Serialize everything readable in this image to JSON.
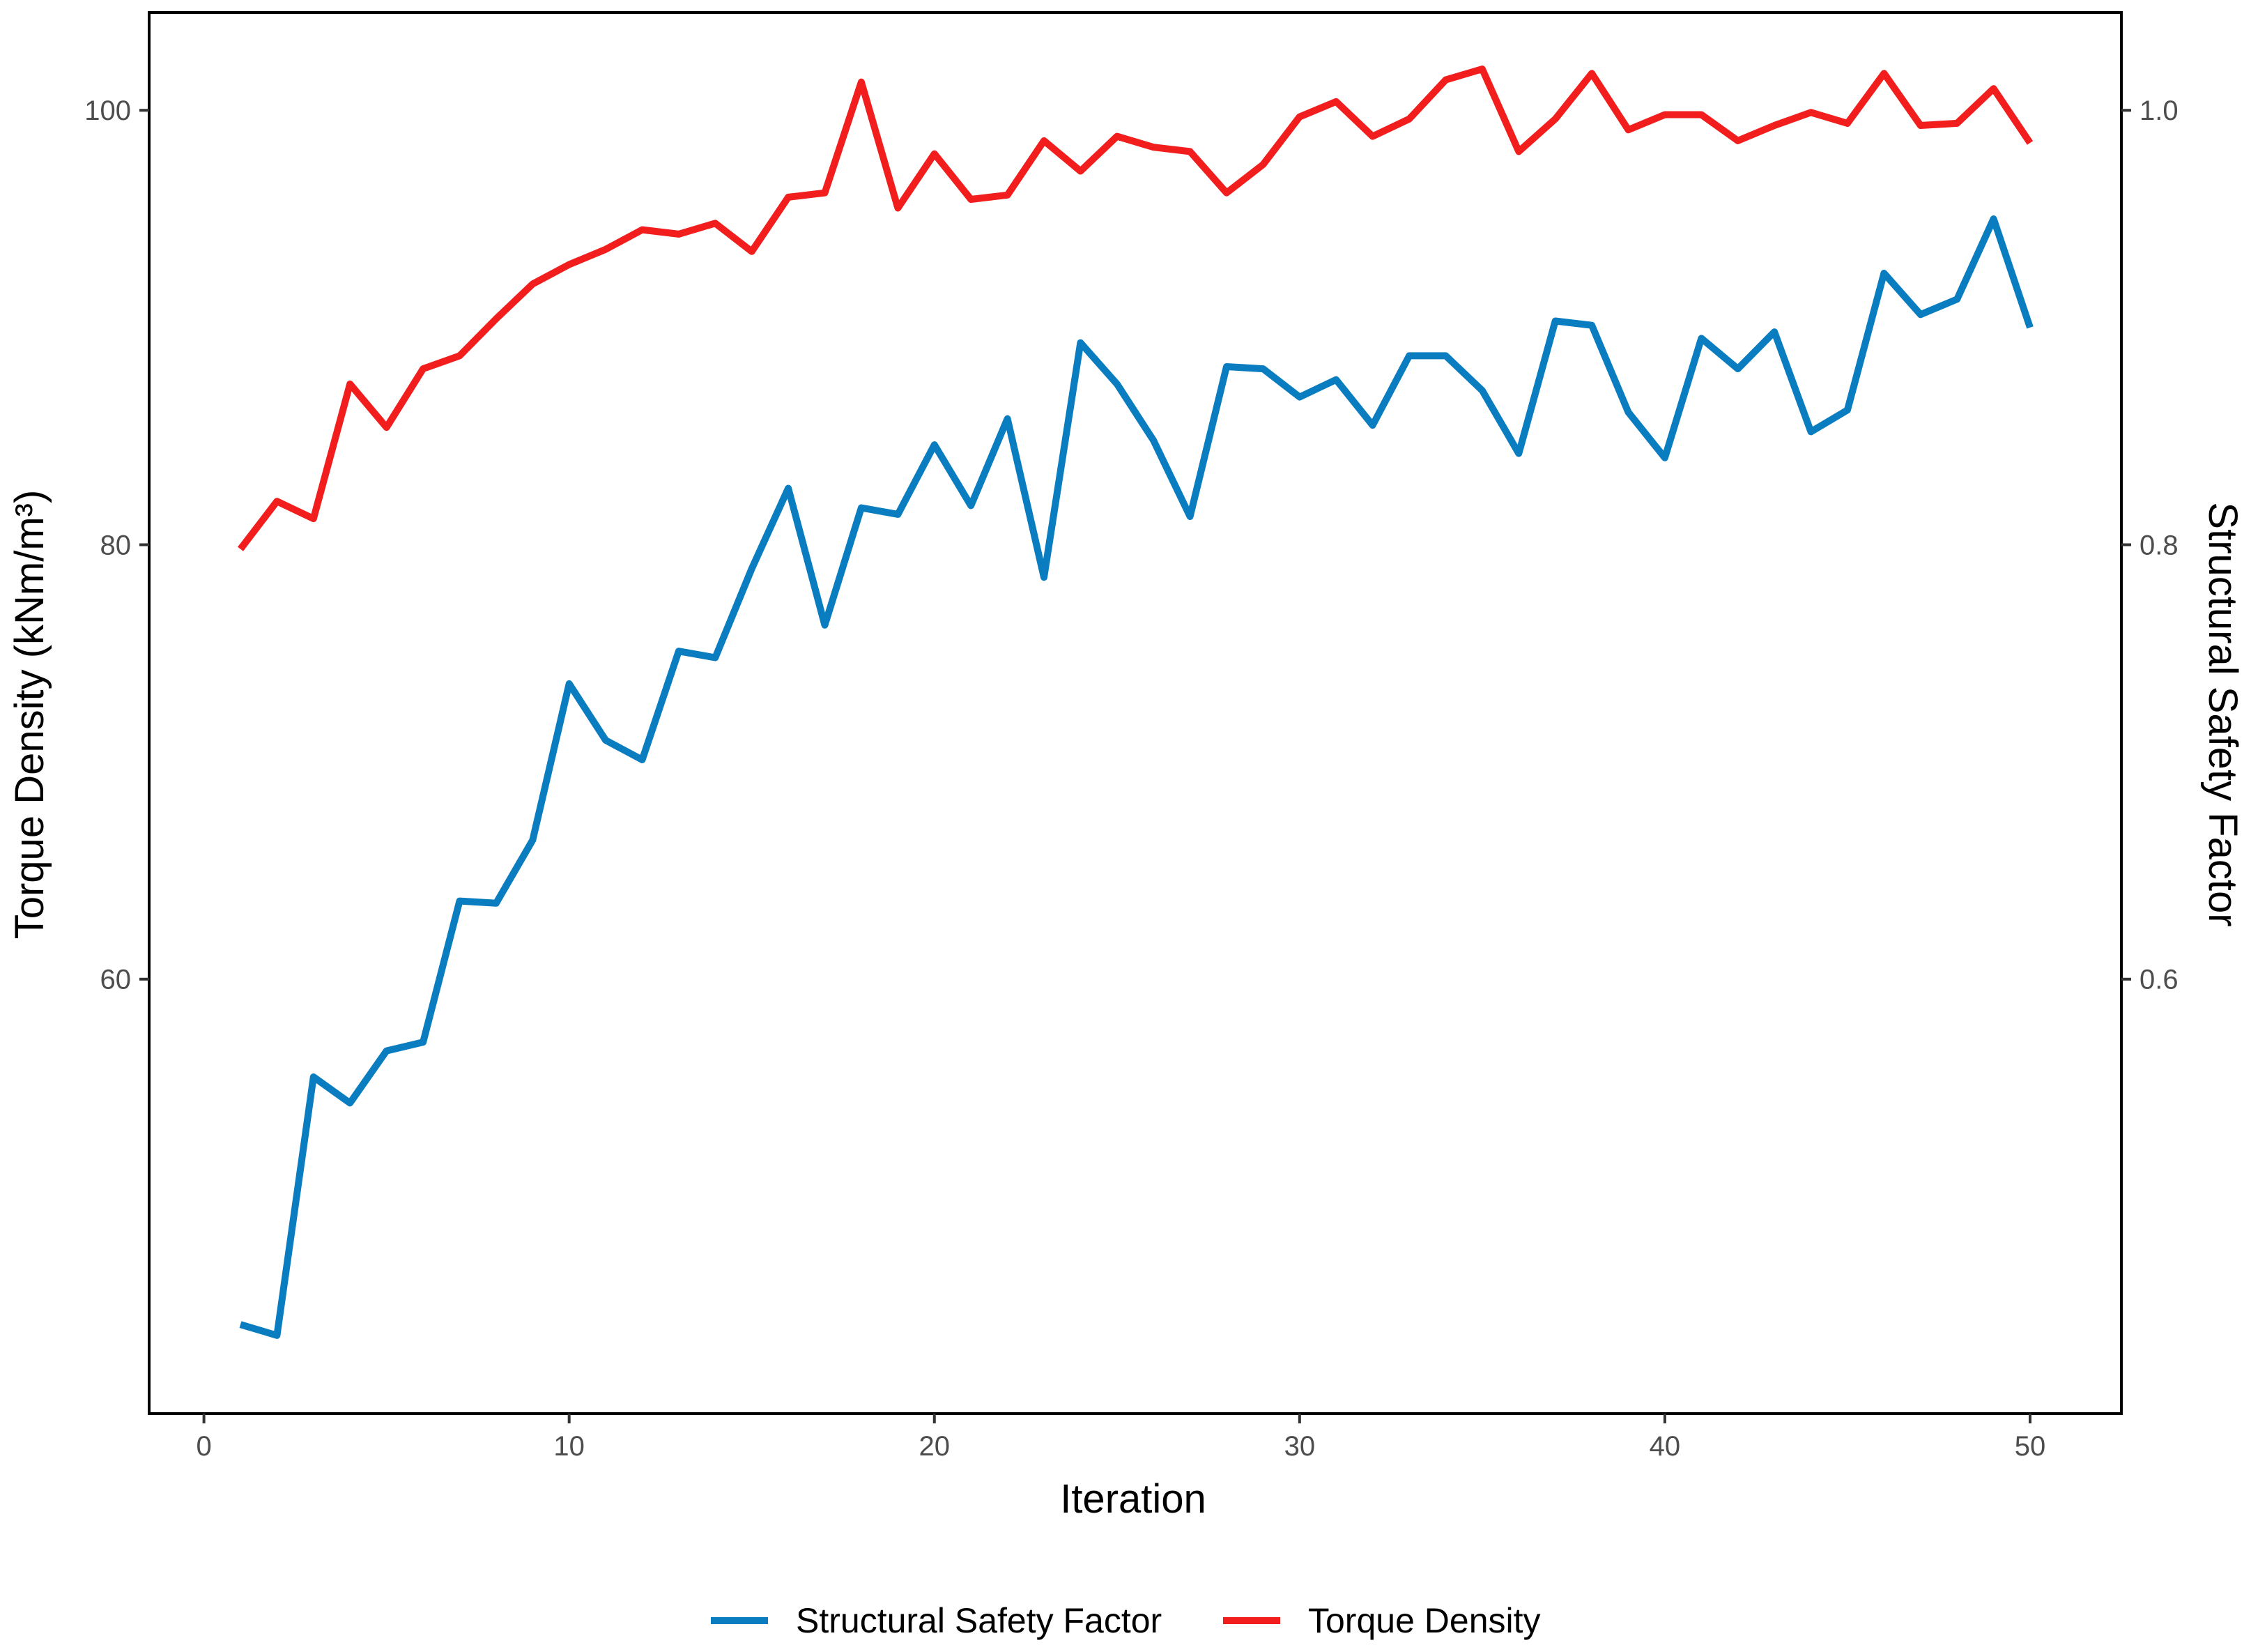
{
  "chart_data": {
    "type": "line",
    "xlabel": "Iteration",
    "ylabel_left": "Torque Density (kNm/m³)",
    "ylabel_right": "Structural Safety Factor",
    "x_ticks": [
      "0",
      "10",
      "20",
      "30",
      "40",
      "50"
    ],
    "y_left_ticks": [
      "60",
      "80",
      "100"
    ],
    "y_right_ticks": [
      "0.6",
      "0.8",
      "1.0"
    ],
    "xlim": [
      -1.5,
      52.5
    ],
    "ylim_left": [
      40.0,
      104.5
    ],
    "ylim_right": [
      0.4,
      1.045
    ],
    "grid": false,
    "legend_position": "bottom",
    "x": [
      1,
      2,
      3,
      4,
      5,
      6,
      7,
      8,
      9,
      10,
      11,
      12,
      13,
      14,
      15,
      16,
      17,
      18,
      19,
      20,
      21,
      22,
      23,
      24,
      25,
      26,
      27,
      28,
      29,
      30,
      31,
      32,
      33,
      34,
      35,
      36,
      37,
      38,
      39,
      40,
      41,
      42,
      43,
      44,
      45,
      46,
      47,
      48,
      49,
      50
    ],
    "series": [
      {
        "name": "Structural Safety Factor",
        "axis": "right",
        "color": "#0A7DC0",
        "values": [
          0.441,
          0.436,
          0.555,
          0.543,
          0.567,
          0.571,
          0.636,
          0.635,
          0.664,
          0.736,
          0.71,
          0.701,
          0.751,
          0.748,
          0.789,
          0.826,
          0.763,
          0.817,
          0.814,
          0.846,
          0.818,
          0.858,
          0.785,
          0.893,
          0.874,
          0.848,
          0.813,
          0.882,
          0.881,
          0.868,
          0.876,
          0.855,
          0.887,
          0.887,
          0.871,
          0.842,
          0.903,
          0.901,
          0.861,
          0.84,
          0.895,
          0.881,
          0.898,
          0.852,
          0.862,
          0.925,
          0.906,
          0.913,
          0.95,
          0.9
        ]
      },
      {
        "name": "Torque Density",
        "axis": "left",
        "color": "#F21E1E",
        "values": [
          79.8,
          82.0,
          81.2,
          87.4,
          85.4,
          88.1,
          88.7,
          90.4,
          92.0,
          92.9,
          93.6,
          94.5,
          94.3,
          94.8,
          93.5,
          96.0,
          96.2,
          101.3,
          95.5,
          98.0,
          95.9,
          96.1,
          98.6,
          97.2,
          98.8,
          98.3,
          98.1,
          96.2,
          97.5,
          99.7,
          100.4,
          98.8,
          99.6,
          101.4,
          101.9,
          98.1,
          99.6,
          101.7,
          99.1,
          99.8,
          99.8,
          98.6,
          99.3,
          99.9,
          99.4,
          101.7,
          99.3,
          99.4,
          101.0,
          98.5
        ]
      }
    ]
  }
}
